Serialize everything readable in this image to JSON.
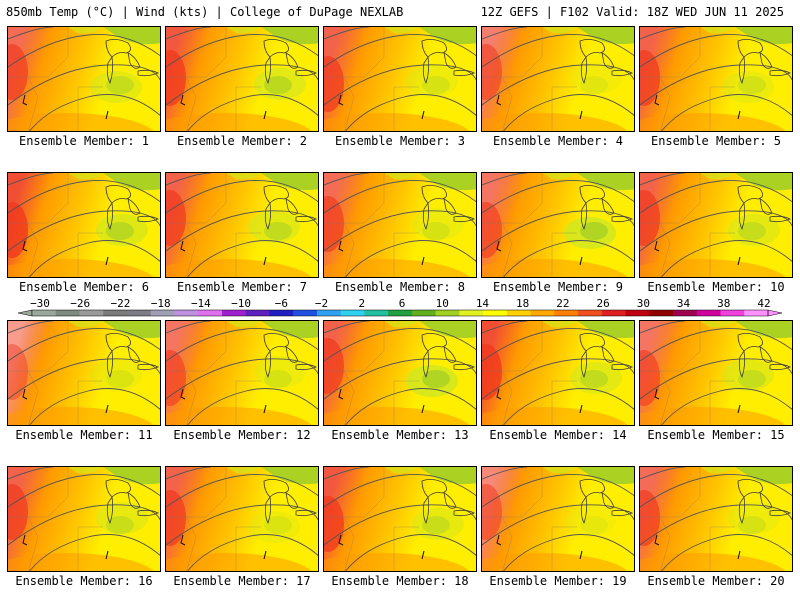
{
  "header": {
    "left_title": "850mb Temp (°C) | Wind (kts) | College of DuPage NEXLAB",
    "right_title": "12Z GEFS | F102 Valid: 18Z WED JUN 11 2025"
  },
  "member_label_prefix": "Ensemble Member: ",
  "members": [
    {
      "label": "Ensemble Member: 1",
      "warm": 0.75,
      "cool": 0.55
    },
    {
      "label": "Ensemble Member: 2",
      "warm": 0.85,
      "cool": 0.65
    },
    {
      "label": "Ensemble Member: 3",
      "warm": 0.8,
      "cool": 0.35
    },
    {
      "label": "Ensemble Member: 4",
      "warm": 0.65,
      "cool": 0.25
    },
    {
      "label": "Ensemble Member: 5",
      "warm": 0.8,
      "cool": 0.4
    },
    {
      "label": "Ensemble Member: 6",
      "warm": 0.9,
      "cool": 0.7
    },
    {
      "label": "Ensemble Member: 7",
      "warm": 0.8,
      "cool": 0.6
    },
    {
      "label": "Ensemble Member: 8",
      "warm": 0.75,
      "cool": 0.35
    },
    {
      "label": "Ensemble Member: 9",
      "warm": 0.7,
      "cool": 0.85
    },
    {
      "label": "Ensemble Member: 10",
      "warm": 0.8,
      "cool": 0.55
    },
    {
      "label": "Ensemble Member: 11",
      "warm": 0.5,
      "cool": 0.3
    },
    {
      "label": "Ensemble Member: 12",
      "warm": 0.7,
      "cool": 0.35
    },
    {
      "label": "Ensemble Member: 13",
      "warm": 0.8,
      "cool": 0.85
    },
    {
      "label": "Ensemble Member: 14",
      "warm": 0.9,
      "cool": 0.6
    },
    {
      "label": "Ensemble Member: 15",
      "warm": 0.7,
      "cool": 0.55
    },
    {
      "label": "Ensemble Member: 16",
      "warm": 0.8,
      "cool": 0.5
    },
    {
      "label": "Ensemble Member: 17",
      "warm": 0.8,
      "cool": 0.3
    },
    {
      "label": "Ensemble Member: 18",
      "warm": 0.85,
      "cool": 0.5
    },
    {
      "label": "Ensemble Member: 19",
      "warm": 0.6,
      "cool": 0.2
    },
    {
      "label": "Ensemble Member: 20",
      "warm": 0.75,
      "cool": 0.35
    }
  ],
  "colorbar": {
    "labels": [
      "−30",
      "−26",
      "−22",
      "−18",
      "−14",
      "−10",
      "−6",
      "−2",
      "2",
      "6",
      "10",
      "14",
      "18",
      "22",
      "26",
      "30",
      "34",
      "38",
      "42"
    ],
    "colors": [
      "#9aa89a",
      "#7f8a7f",
      "#9a9a9a",
      "#7a7a7a",
      "#7c7c86",
      "#a0a0b4",
      "#c090e0",
      "#e070f0",
      "#a020d0",
      "#6020c0",
      "#2020c0",
      "#2050e0",
      "#30a0f0",
      "#30d0f0",
      "#20c0a0",
      "#20a040",
      "#60b020",
      "#a0d020",
      "#e0f020",
      "#ffff00",
      "#ffd000",
      "#ffa800",
      "#ff8000",
      "#f05020",
      "#e02020",
      "#c00010",
      "#900000",
      "#a00050",
      "#d000a0",
      "#f040e0",
      "#ff90ff"
    ]
  },
  "colors": {
    "warm_red": "#f03a1e",
    "orange": "#ff9a00",
    "light_orange": "#ffc400",
    "yellow": "#ffee00",
    "lime": "#d2e61e",
    "green": "#9ccc28",
    "border_line": "#555555"
  }
}
